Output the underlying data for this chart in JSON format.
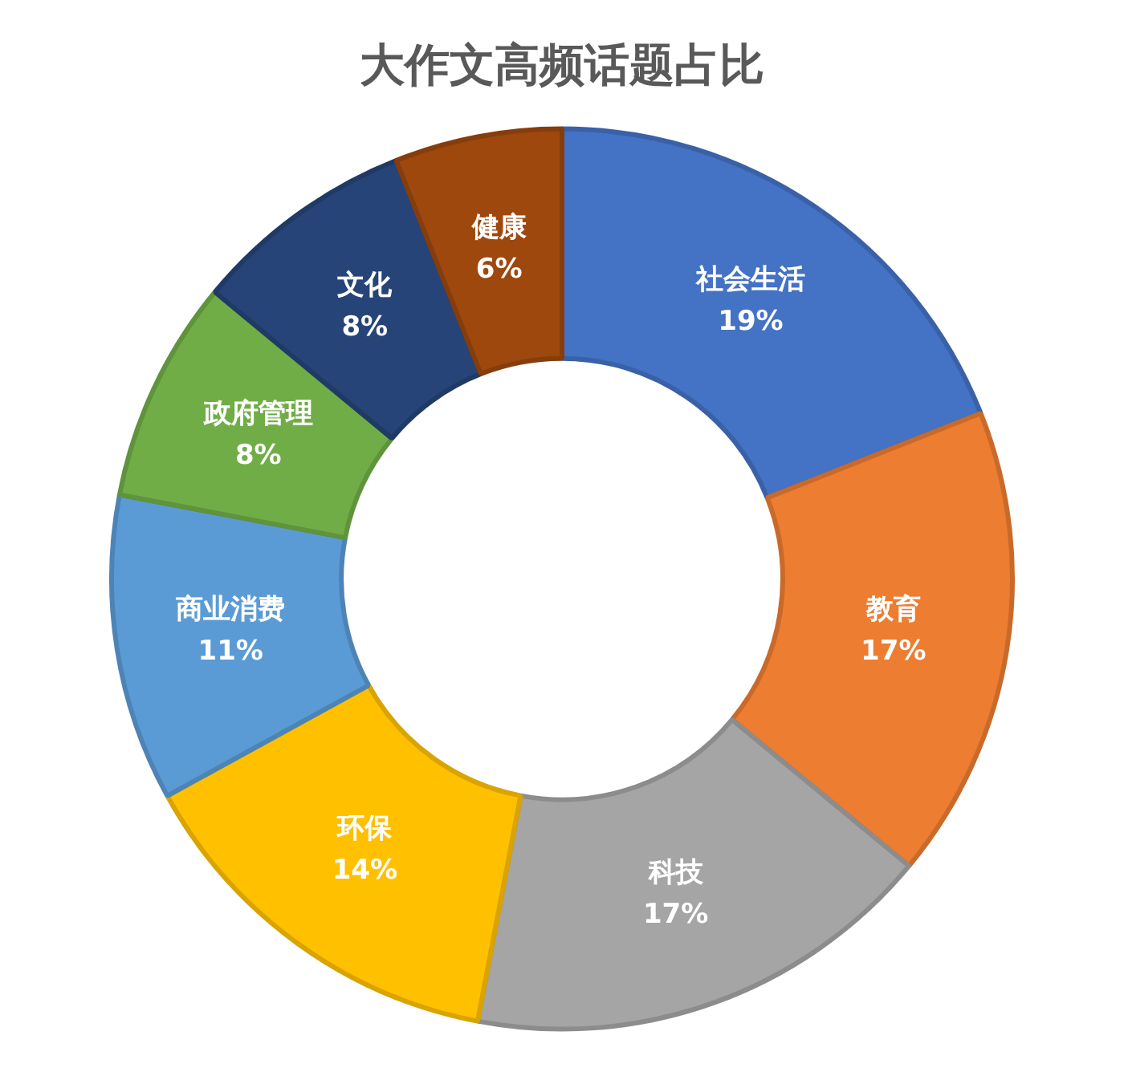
{
  "chart_data": {
    "type": "donut",
    "title": "大作文高频话题占比",
    "categories": [
      "社会生活",
      "教育",
      "科技",
      "环保",
      "商业消费",
      "政府管理",
      "文化",
      "健康"
    ],
    "values": [
      19,
      17,
      17,
      14,
      11,
      8,
      8,
      6
    ],
    "value_labels": [
      "19%",
      "17%",
      "17%",
      "14%",
      "11%",
      "8%",
      "8%",
      "6%"
    ],
    "colors": [
      "#4472c4",
      "#ed7d31",
      "#a5a5a5",
      "#ffc000",
      "#5b9bd5",
      "#70ad47",
      "#264478",
      "#9e480e"
    ],
    "legend": false
  }
}
